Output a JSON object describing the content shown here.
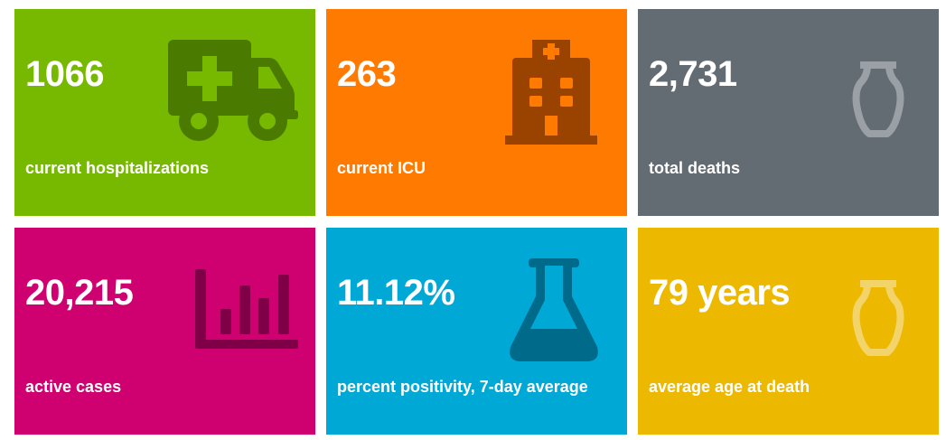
{
  "stats": [
    {
      "value": "1066",
      "label": "current hospitalizations",
      "icon": "ambulance-icon",
      "color": "#76b900"
    },
    {
      "value": "263",
      "label": "current ICU",
      "icon": "hospital-icon",
      "color": "#ff7a00"
    },
    {
      "value": "2,731",
      "label": "total deaths",
      "icon": "urn-icon",
      "color": "#636b73"
    },
    {
      "value": "20,215",
      "label": "active cases",
      "icon": "bar-chart-icon",
      "color": "#cf0070"
    },
    {
      "value": "11.12%",
      "label": "percent positivity, 7-day average",
      "icon": "flask-icon",
      "color": "#00a8d6"
    },
    {
      "value": "79 years",
      "label": "average age at death",
      "icon": "urn-icon",
      "color": "#ecb800"
    }
  ]
}
